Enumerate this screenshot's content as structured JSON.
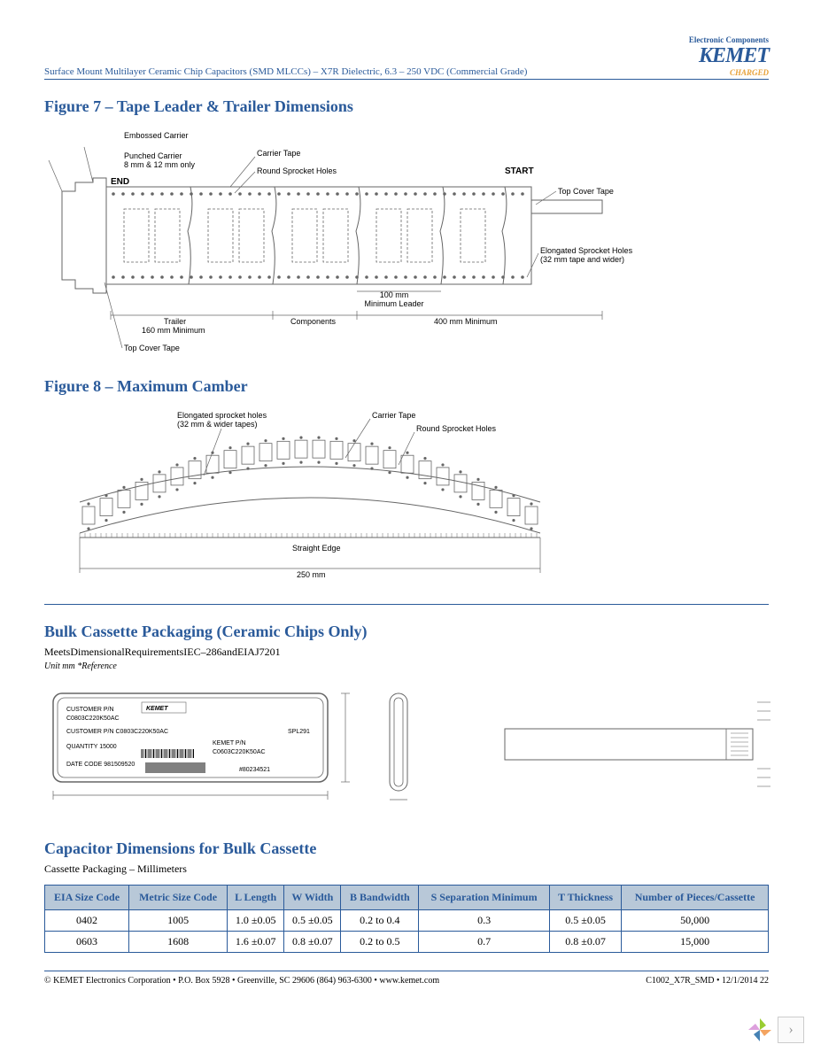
{
  "header": {
    "title": "Surface Mount Multilayer Ceramic Chip Capacitors (SMD MLCCs) – X7R Dielectric, 6.3 – 250 VDC (Commercial Grade)",
    "logo_top": "Electronic Components",
    "logo_main": "KEMET",
    "logo_sub": "CHARGED"
  },
  "figure7": {
    "title": "Figure 7 – Tape Leader & Trailer Dimensions",
    "labels": {
      "embossed": "Embossed Carrier",
      "punched": "Punched Carrier\n8 mm & 12 mm only",
      "carrier_tape": "Carrier Tape",
      "round_holes": "Round Sprocket Holes",
      "end": "END",
      "start": "START",
      "top_cover": "Top Cover Tape",
      "elongated": "Elongated Sprocket Holes\n(32 mm tape and wider)",
      "trailer": "Trailer\n160 mm Minimum",
      "components": "Components",
      "leader_100": "100 mm\nMinimum Leader",
      "leader_400": "400 mm Minimum",
      "top_cover2": "Top Cover Tape"
    }
  },
  "figure8": {
    "title": "Figure 8 – Maximum Camber",
    "labels": {
      "elongated": "Elongated sprocket holes\n(32 mm & wider tapes)",
      "carrier_tape": "Carrier Tape",
      "round_holes": "Round Sprocket Holes",
      "straight_edge": "Straight Edge",
      "dimension": "250 mm"
    }
  },
  "bulk_cassette": {
    "title": "Bulk Cassette Packaging (Ceramic Chips Only)",
    "subtitle": "MeetsDimensionalRequirementsIEC–286andEIAJ7201",
    "note": "Unit mm *Reference",
    "label_text": {
      "customer_pn": "CUSTOMER P/N",
      "pn_value": "C0803C220K50AC",
      "kemet_pn": "KEMET P/N",
      "quantity": "QUANTITY",
      "date_code": "DATE CODE",
      "lot": "SPL291"
    }
  },
  "cap_dims": {
    "title": "Capacitor Dimensions for Bulk Cassette",
    "subtitle": "Cassette Packaging – Millimeters",
    "columns": [
      "EIA Size Code",
      "Metric Size Code",
      "L Length",
      "W Width",
      "B Bandwidth",
      "S Separation Minimum",
      "T Thickness",
      "Number of Pieces/Cassette"
    ],
    "rows": [
      [
        "0402",
        "1005",
        "1.0 ±0.05",
        "0.5 ±0.05",
        "0.2 to 0.4",
        "0.3",
        "0.5 ±0.05",
        "50,000"
      ],
      [
        "0603",
        "1608",
        "1.6 ±0.07",
        "0.8 ±0.07",
        "0.2 to 0.5",
        "0.7",
        "0.8 ±0.07",
        "15,000"
      ]
    ]
  },
  "footer": {
    "left": "© KEMET Electronics Corporation • P.O. Box 5928 • Greenville, SC 29606 (864) 963-6300 • www.kemet.com",
    "right": "C1002_X7R_SMD • 12/1/2014  22"
  },
  "colors": {
    "brand_blue": "#2a5a9a",
    "brand_orange": "#e8a23a",
    "table_header_bg": "#b8c8d8",
    "diagram_stroke": "#666666"
  }
}
